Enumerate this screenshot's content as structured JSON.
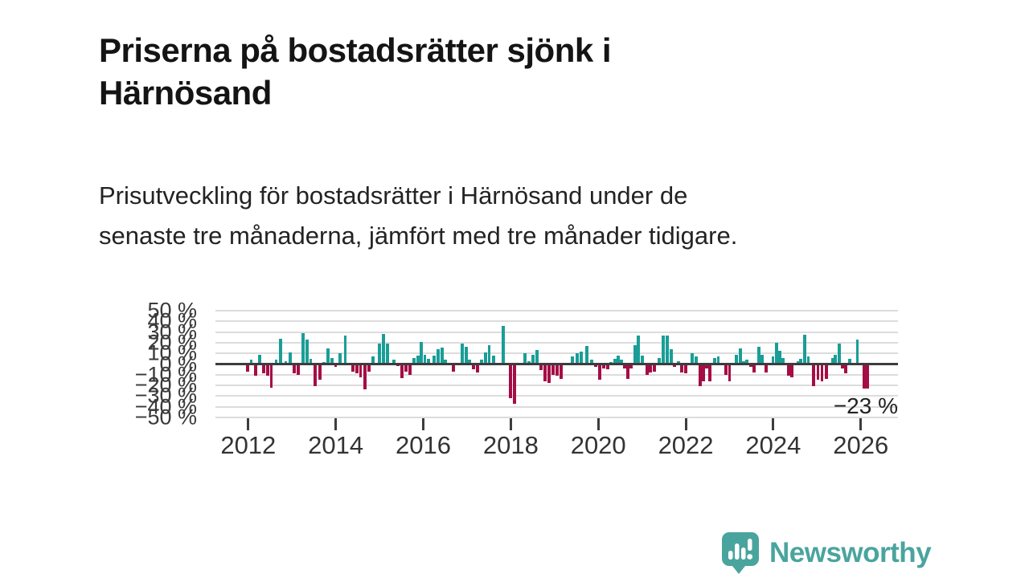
{
  "header": {
    "title": "Priserna på bostadsrätter sjönk i Härnösand",
    "subtitle": "Prisutveckling för bostadsrätter i Härnösand under de senaste tre månaderna, jämfört med tre månader tidigare."
  },
  "logo": {
    "text": "Newsworthy",
    "color": "#4aa49e"
  },
  "chart_data": {
    "type": "bar",
    "title": "Priserna på bostadsrätter sjönk i Härnösand",
    "unit": "%",
    "x_domain": [
      2011.25,
      2026.85
    ],
    "ylim": [
      -50,
      50
    ],
    "grid": true,
    "y_tick_values": [
      50,
      40,
      30,
      20,
      10,
      0,
      -10,
      -20,
      -30,
      -40,
      -50
    ],
    "y_tick_labels": [
      "50 %",
      "40 %",
      "30 %",
      "20 %",
      "10 %",
      "0 %",
      "−10 %",
      "−20 %",
      "−30 %",
      "−40 %",
      "−50 %"
    ],
    "x_tick_values": [
      2012,
      2014,
      2016,
      2018,
      2020,
      2022,
      2024,
      2026
    ],
    "x_tick_labels": [
      "2012",
      "2014",
      "2016",
      "2018",
      "2020",
      "2022",
      "2024",
      "2026"
    ],
    "annotation": {
      "text": "−23 %",
      "value": -23,
      "x": 2026.12
    },
    "colors": {
      "positive": "#199e97",
      "negative": "#a50d45",
      "zero_line": "#3d3d3d",
      "gridline": "#dcdcdc"
    },
    "final_bar_wide": true,
    "points": [
      [
        2011.98,
        -7.5
      ],
      [
        2012.07,
        4
      ],
      [
        2012.17,
        -11
      ],
      [
        2012.26,
        9
      ],
      [
        2012.35,
        -9
      ],
      [
        2012.44,
        -11
      ],
      [
        2012.53,
        -22
      ],
      [
        2012.64,
        4
      ],
      [
        2012.74,
        24
      ],
      [
        2012.86,
        3
      ],
      [
        2012.96,
        11
      ],
      [
        2013.05,
        -9
      ],
      [
        2013.14,
        -10.5
      ],
      [
        2013.25,
        29
      ],
      [
        2013.34,
        23
      ],
      [
        2013.43,
        5
      ],
      [
        2013.53,
        -21
      ],
      [
        2013.64,
        -15
      ],
      [
        2013.73,
        2
      ],
      [
        2013.82,
        15
      ],
      [
        2013.91,
        6
      ],
      [
        2014.0,
        -2.5
      ],
      [
        2014.1,
        10
      ],
      [
        2014.22,
        27
      ],
      [
        2014.39,
        -7
      ],
      [
        2014.48,
        -9
      ],
      [
        2014.57,
        -12.5
      ],
      [
        2014.67,
        -24
      ],
      [
        2014.76,
        -7
      ],
      [
        2014.85,
        7
      ],
      [
        2015.0,
        19
      ],
      [
        2015.09,
        28
      ],
      [
        2015.18,
        19
      ],
      [
        2015.33,
        4
      ],
      [
        2015.42,
        -2
      ],
      [
        2015.51,
        -13
      ],
      [
        2015.6,
        -7
      ],
      [
        2015.7,
        -10
      ],
      [
        2015.79,
        5.5
      ],
      [
        2015.88,
        8
      ],
      [
        2015.95,
        21
      ],
      [
        2016.04,
        9
      ],
      [
        2016.12,
        5
      ],
      [
        2016.25,
        8
      ],
      [
        2016.34,
        14
      ],
      [
        2016.43,
        15.5
      ],
      [
        2016.5,
        4
      ],
      [
        2016.69,
        -7.5
      ],
      [
        2016.89,
        19
      ],
      [
        2016.98,
        16
      ],
      [
        2017.06,
        4
      ],
      [
        2017.15,
        -5
      ],
      [
        2017.24,
        -8
      ],
      [
        2017.33,
        4
      ],
      [
        2017.42,
        11
      ],
      [
        2017.51,
        17.5
      ],
      [
        2017.61,
        8
      ],
      [
        2017.83,
        36
      ],
      [
        2017.99,
        -32
      ],
      [
        2018.08,
        -37
      ],
      [
        2018.32,
        10
      ],
      [
        2018.42,
        3
      ],
      [
        2018.51,
        9
      ],
      [
        2018.6,
        13
      ],
      [
        2018.69,
        -6
      ],
      [
        2018.78,
        -16
      ],
      [
        2018.88,
        -18
      ],
      [
        2018.97,
        -10
      ],
      [
        2019.06,
        -11
      ],
      [
        2019.15,
        -14
      ],
      [
        2019.41,
        7
      ],
      [
        2019.52,
        10
      ],
      [
        2019.61,
        12
      ],
      [
        2019.74,
        17
      ],
      [
        2019.85,
        4
      ],
      [
        2019.94,
        -3
      ],
      [
        2020.03,
        -15
      ],
      [
        2020.13,
        -4
      ],
      [
        2020.22,
        -5
      ],
      [
        2020.29,
        2
      ],
      [
        2020.38,
        5
      ],
      [
        2020.46,
        8
      ],
      [
        2020.53,
        4
      ],
      [
        2020.6,
        -4
      ],
      [
        2020.68,
        -14
      ],
      [
        2020.75,
        -4
      ],
      [
        2020.84,
        17.5
      ],
      [
        2020.92,
        27
      ],
      [
        2021.01,
        8
      ],
      [
        2021.12,
        -10
      ],
      [
        2021.19,
        -8
      ],
      [
        2021.28,
        -7.5
      ],
      [
        2021.39,
        6
      ],
      [
        2021.49,
        27
      ],
      [
        2021.58,
        27
      ],
      [
        2021.67,
        14
      ],
      [
        2021.74,
        -3
      ],
      [
        2021.83,
        3
      ],
      [
        2021.91,
        -8
      ],
      [
        2022.0,
        -9
      ],
      [
        2022.15,
        10
      ],
      [
        2022.24,
        7.5
      ],
      [
        2022.33,
        -21
      ],
      [
        2022.4,
        -16
      ],
      [
        2022.48,
        -4
      ],
      [
        2022.55,
        -16
      ],
      [
        2022.66,
        6
      ],
      [
        2022.74,
        7
      ],
      [
        2022.92,
        -10
      ],
      [
        2023.0,
        -16
      ],
      [
        2023.16,
        9
      ],
      [
        2023.25,
        14.5
      ],
      [
        2023.32,
        3
      ],
      [
        2023.4,
        4
      ],
      [
        2023.49,
        -3
      ],
      [
        2023.56,
        -8
      ],
      [
        2023.67,
        16
      ],
      [
        2023.75,
        9
      ],
      [
        2023.84,
        -8
      ],
      [
        2023.99,
        7
      ],
      [
        2024.08,
        20
      ],
      [
        2024.15,
        12.5
      ],
      [
        2024.22,
        6
      ],
      [
        2024.35,
        -11
      ],
      [
        2024.43,
        -12.5
      ],
      [
        2024.56,
        3
      ],
      [
        2024.63,
        5
      ],
      [
        2024.72,
        27.5
      ],
      [
        2024.8,
        7
      ],
      [
        2024.92,
        -21
      ],
      [
        2025.02,
        -15
      ],
      [
        2025.11,
        -16
      ],
      [
        2025.22,
        -14
      ],
      [
        2025.35,
        6
      ],
      [
        2025.42,
        9
      ],
      [
        2025.51,
        19
      ],
      [
        2025.58,
        -4
      ],
      [
        2025.66,
        -9
      ],
      [
        2025.75,
        5
      ],
      [
        2025.92,
        23
      ],
      [
        2026.12,
        -23
      ]
    ]
  }
}
